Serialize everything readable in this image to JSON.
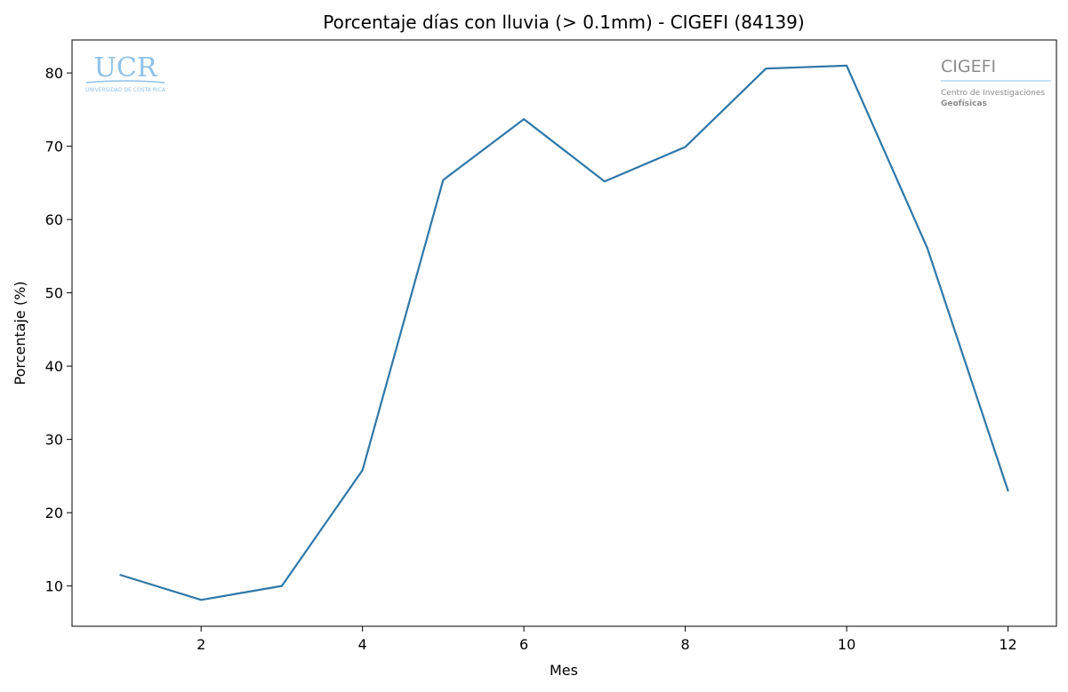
{
  "chart_data": {
    "type": "line",
    "title": "Porcentaje días con lluvia (> 0.1mm) - CIGEFI (84139)",
    "xlabel": "Mes",
    "ylabel": "Porcentaje (%)",
    "x": [
      1,
      2,
      3,
      4,
      5,
      6,
      7,
      8,
      9,
      10,
      11,
      12
    ],
    "series": [
      {
        "values": [
          11.5,
          8.1,
          10.0,
          25.8,
          65.4,
          73.7,
          65.2,
          69.9,
          80.6,
          81.0,
          56.1,
          23.0
        ],
        "color": "#2e77a8"
      }
    ],
    "xlim": [
      0.4,
      12.6
    ],
    "ylim": [
      4.5,
      84.5
    ],
    "xticks": [
      2,
      4,
      6,
      8,
      10,
      12
    ],
    "yticks": [
      10,
      20,
      30,
      40,
      50,
      60,
      70,
      80
    ],
    "grid": false,
    "legend": false
  },
  "logos": {
    "left": {
      "name": "UCR",
      "subtitle": "UNIVERSIDAD DE COSTA RICA"
    },
    "right": {
      "name": "CIGEFI",
      "line1": "Centro de Investigaciones",
      "line2": "Geofísicas"
    }
  }
}
